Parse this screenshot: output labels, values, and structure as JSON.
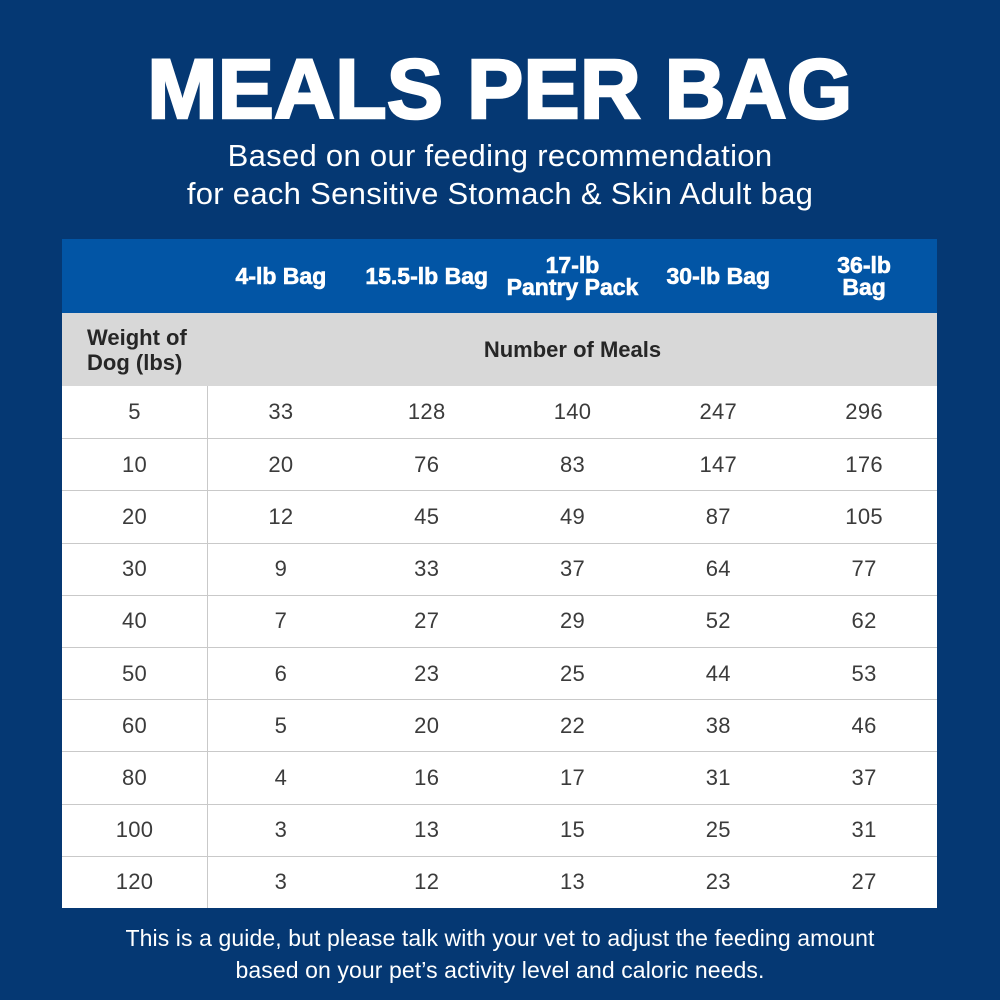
{
  "colors": {
    "background": "#053873",
    "table_header_blue": "#0255a5",
    "subheader_gray": "#d8d8d8",
    "body_white": "#ffffff",
    "text_white": "#ffffff",
    "text_dark": "#1d1d1d",
    "number_text": "#3b3b3b",
    "row_divider": "#c9c9c9"
  },
  "header": {
    "title": "MEALS PER BAG",
    "subtitle_line1": "Based on our feeding recommendation",
    "subtitle_line2": "for each Sensitive Stomach & Skin Adult bag"
  },
  "table": {
    "columns": [
      "4-lb Bag",
      "15.5-lb Bag",
      "17-lb\nPantry Pack",
      "30-lb Bag",
      "36-lb\nBag"
    ],
    "row_header_label": "Weight of\nDog (lbs)",
    "subheader_label": "Number of Meals",
    "rows": [
      {
        "weight": "5",
        "values": [
          "33",
          "128",
          "140",
          "247",
          "296"
        ]
      },
      {
        "weight": "10",
        "values": [
          "20",
          "76",
          "83",
          "147",
          "176"
        ]
      },
      {
        "weight": "20",
        "values": [
          "12",
          "45",
          "49",
          "87",
          "105"
        ]
      },
      {
        "weight": "30",
        "values": [
          "9",
          "33",
          "37",
          "64",
          "77"
        ]
      },
      {
        "weight": "40",
        "values": [
          "7",
          "27",
          "29",
          "52",
          "62"
        ]
      },
      {
        "weight": "50",
        "values": [
          "6",
          "23",
          "25",
          "44",
          "53"
        ]
      },
      {
        "weight": "60",
        "values": [
          "5",
          "20",
          "22",
          "38",
          "46"
        ]
      },
      {
        "weight": "80",
        "values": [
          "4",
          "16",
          "17",
          "31",
          "37"
        ]
      },
      {
        "weight": "100",
        "values": [
          "3",
          "13",
          "15",
          "25",
          "31"
        ]
      },
      {
        "weight": "120",
        "values": [
          "3",
          "12",
          "13",
          "23",
          "27"
        ]
      }
    ]
  },
  "footer": {
    "line1": "This is a guide, but please talk with your vet to adjust the feeding amount",
    "line2": "based on your pet’s activity level and caloric needs."
  },
  "chart_data": {
    "type": "table",
    "title": "MEALS PER BAG",
    "subtitle": "Based on our feeding recommendation for each Sensitive Stomach & Skin Adult bag",
    "row_header": "Weight of Dog (lbs)",
    "value_group_header": "Number of Meals",
    "columns": [
      "4-lb Bag",
      "15.5-lb Bag",
      "17-lb Pantry Pack",
      "30-lb Bag",
      "36-lb Bag"
    ],
    "weights_lbs": [
      5,
      10,
      20,
      30,
      40,
      50,
      60,
      80,
      100,
      120
    ],
    "series": [
      {
        "name": "4-lb Bag",
        "values": [
          33,
          20,
          12,
          9,
          7,
          6,
          5,
          4,
          3,
          3
        ]
      },
      {
        "name": "15.5-lb Bag",
        "values": [
          128,
          76,
          45,
          33,
          27,
          23,
          20,
          16,
          13,
          12
        ]
      },
      {
        "name": "17-lb Pantry Pack",
        "values": [
          140,
          83,
          49,
          37,
          29,
          25,
          22,
          17,
          15,
          13
        ]
      },
      {
        "name": "30-lb Bag",
        "values": [
          247,
          147,
          87,
          64,
          52,
          44,
          38,
          31,
          25,
          23
        ]
      },
      {
        "name": "36-lb Bag",
        "values": [
          296,
          176,
          105,
          77,
          62,
          53,
          46,
          37,
          31,
          27
        ]
      }
    ],
    "note": "This is a guide, but please talk with your vet to adjust the feeding amount based on your pet’s activity level and caloric needs."
  }
}
